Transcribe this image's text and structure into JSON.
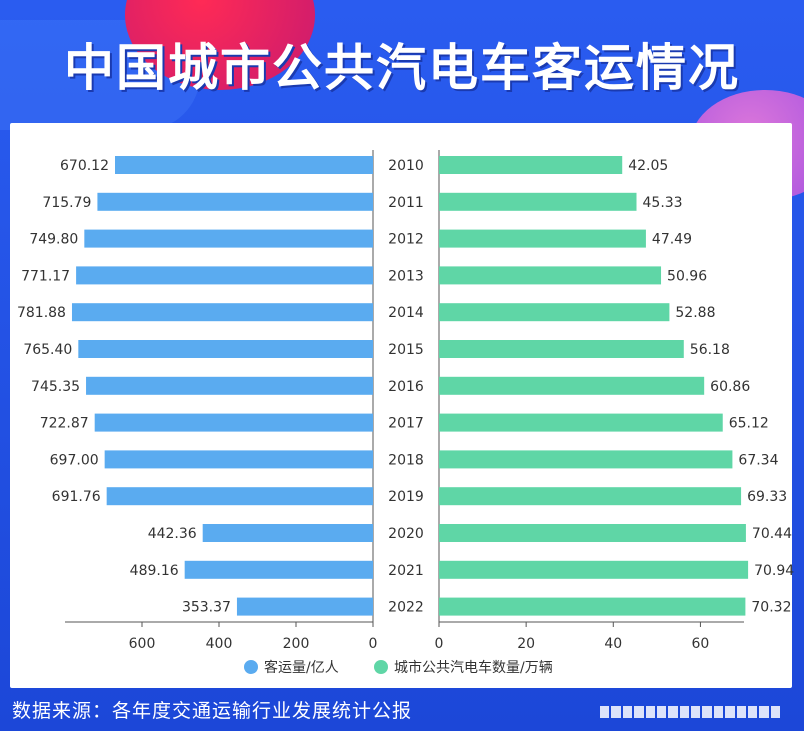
{
  "title": "中国城市公共汽电车客运情况",
  "footer": "数据来源：各年度交通运输行业发展统计公报",
  "colors": {
    "background": "#1f4fe0",
    "left_bar": "#5aabf0",
    "right_bar": "#5fd6a6",
    "text": "#333333"
  },
  "chart_data": {
    "type": "bar",
    "orientation": "horizontal-butterfly",
    "categories": [
      "2010",
      "2011",
      "2012",
      "2013",
      "2014",
      "2015",
      "2016",
      "2017",
      "2018",
      "2019",
      "2020",
      "2021",
      "2022"
    ],
    "series": [
      {
        "name": "客运量/亿人",
        "values": [
          670.12,
          715.79,
          749.8,
          771.17,
          781.88,
          765.4,
          745.35,
          722.87,
          697.0,
          691.76,
          442.36,
          489.16,
          353.37
        ],
        "labels": [
          "670.12",
          "715.79",
          "749.80",
          "771.17",
          "781.88",
          "765.40",
          "745.35",
          "722.87",
          "697.00",
          "691.76",
          "442.36",
          "489.16",
          "353.37"
        ],
        "xlim": [
          0,
          800
        ],
        "ticks": [
          600,
          400,
          200,
          0
        ],
        "direction": "left"
      },
      {
        "name": "城市公共汽电车数量/万辆",
        "values": [
          42.05,
          45.33,
          47.49,
          50.96,
          52.88,
          56.18,
          60.86,
          65.12,
          67.34,
          69.33,
          70.44,
          70.94,
          70.32
        ],
        "labels": [
          "42.05",
          "45.33",
          "47.49",
          "50.96",
          "52.88",
          "56.18",
          "60.86",
          "65.12",
          "67.34",
          "69.33",
          "70.44",
          "70.94",
          "70.32"
        ],
        "xlim": [
          0,
          70
        ],
        "ticks": [
          0,
          20,
          40,
          60
        ],
        "direction": "right"
      }
    ],
    "legend_position": "bottom"
  }
}
